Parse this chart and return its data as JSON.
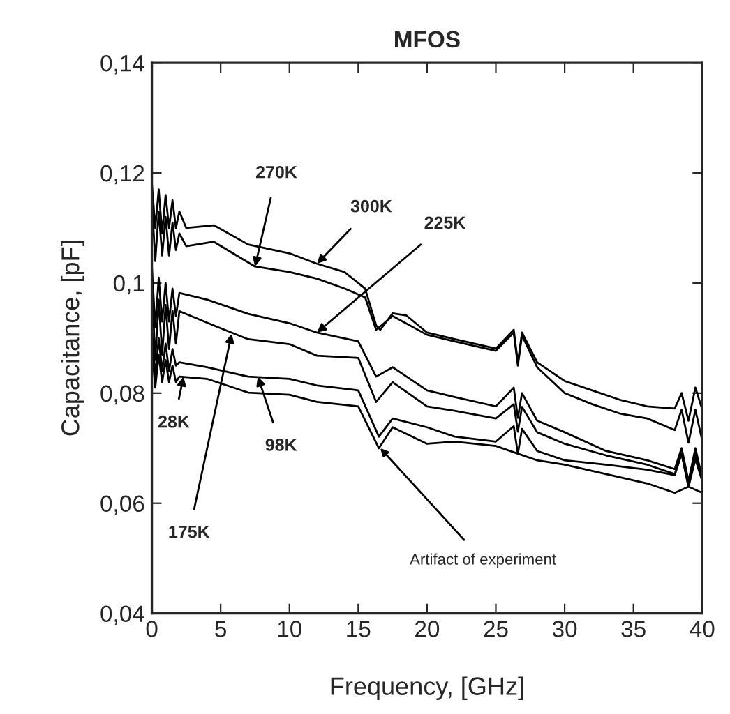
{
  "chart_data": {
    "type": "line",
    "title": "MFOS",
    "xlabel": "Frequency, [GHz]",
    "ylabel": "Capacitance, [pF]",
    "xlim": [
      0,
      40
    ],
    "xticks": [
      0,
      5,
      10,
      15,
      20,
      25,
      30,
      35,
      40
    ],
    "ylim": [
      0.04,
      0.14
    ],
    "yticks": [
      {
        "value": 0.04,
        "label": "0,04"
      },
      {
        "value": 0.06,
        "label": "0,06"
      },
      {
        "value": 0.08,
        "label": "0,08"
      },
      {
        "value": 0.1,
        "label": "0,1"
      },
      {
        "value": 0.12,
        "label": "0,12"
      },
      {
        "value": 0.14,
        "label": "0,14"
      }
    ],
    "grid": false,
    "legend": false,
    "line_style": "solid",
    "series": [
      {
        "color": "#000000",
        "x": [
          0,
          0.25,
          0.5,
          0.75,
          1,
          1.25,
          1.5,
          1.75,
          2,
          2.5,
          4.5,
          7,
          10,
          12,
          14,
          15.5,
          16.3,
          16.6,
          17.5,
          18.5,
          20,
          22,
          25,
          26.3,
          26.6,
          26.9,
          28,
          30,
          32,
          34,
          36,
          38,
          38.5,
          39,
          39.5,
          40
        ],
        "values": [
          0.118,
          0.11,
          0.117,
          0.109,
          0.116,
          0.11,
          0.115,
          0.11,
          0.113,
          0.11,
          0.1105,
          0.107,
          0.1054,
          0.1035,
          0.102,
          0.099,
          0.0923,
          0.0915,
          0.0945,
          0.0941,
          0.091,
          0.0898,
          0.0881,
          0.0915,
          0.0855,
          0.091,
          0.0856,
          0.0822,
          0.0805,
          0.0788,
          0.0776,
          0.0772,
          0.08,
          0.075,
          0.081,
          0.077
        ]
      },
      {
        "color": "#000000",
        "x": [
          0,
          0.25,
          0.5,
          0.75,
          1,
          1.25,
          1.5,
          1.75,
          2,
          2.5,
          4.5,
          7.5,
          10,
          12,
          14,
          15.5,
          16.3,
          17.5,
          20,
          22,
          25,
          26.3,
          26.6,
          26.9,
          28,
          30,
          32,
          34,
          36,
          38,
          38.5,
          39,
          39.5,
          40
        ],
        "values": [
          0.115,
          0.104,
          0.113,
          0.105,
          0.112,
          0.105,
          0.111,
          0.106,
          0.109,
          0.1067,
          0.1075,
          0.103,
          0.102,
          0.1008,
          0.099,
          0.0974,
          0.0915,
          0.094,
          0.0906,
          0.0894,
          0.0877,
          0.091,
          0.085,
          0.0905,
          0.0847,
          0.08,
          0.078,
          0.0763,
          0.0754,
          0.0733,
          0.077,
          0.071,
          0.077,
          0.0713
        ]
      },
      {
        "color": "#000000",
        "x": [
          0,
          0.25,
          0.5,
          0.75,
          1,
          1.25,
          1.5,
          1.75,
          2,
          4,
          7,
          10,
          12,
          15,
          16.3,
          17.5,
          20,
          22,
          25,
          26.3,
          26.6,
          26.9,
          28,
          30,
          33,
          36,
          38,
          38.5,
          39,
          39.5,
          40
        ],
        "values": [
          0.103,
          0.092,
          0.101,
          0.093,
          0.1,
          0.093,
          0.099,
          0.094,
          0.0982,
          0.097,
          0.0944,
          0.0927,
          0.091,
          0.0894,
          0.083,
          0.0847,
          0.0805,
          0.0793,
          0.0776,
          0.081,
          0.0755,
          0.08,
          0.075,
          0.0729,
          0.0695,
          0.0678,
          0.0662,
          0.07,
          0.064,
          0.07,
          0.0645
        ]
      },
      {
        "color": "#000000",
        "x": [
          0,
          0.25,
          0.5,
          0.75,
          1,
          1.25,
          1.5,
          1.75,
          2,
          4.5,
          7,
          10,
          12,
          15,
          16.3,
          17.5,
          20,
          22,
          25,
          26.3,
          26.6,
          26.9,
          28,
          30,
          33,
          36,
          38,
          38.5,
          39,
          39.5,
          40
        ],
        "values": [
          0.1,
          0.086,
          0.097,
          0.087,
          0.096,
          0.088,
          0.095,
          0.089,
          0.0949,
          0.0923,
          0.0898,
          0.0889,
          0.0868,
          0.0864,
          0.0784,
          0.082,
          0.0776,
          0.0768,
          0.0754,
          0.078,
          0.073,
          0.0775,
          0.0729,
          0.0708,
          0.0687,
          0.067,
          0.0653,
          0.069,
          0.063,
          0.069,
          0.064
        ]
      },
      {
        "color": "#000000",
        "x": [
          0,
          0.25,
          0.5,
          0.75,
          1,
          1.25,
          1.5,
          1.75,
          2,
          4,
          7,
          10,
          12,
          15,
          16.5,
          17.5,
          20,
          22,
          25,
          26.3,
          26.6,
          26.9,
          28,
          30,
          33,
          36,
          38,
          38.5,
          39,
          39.5,
          40
        ],
        "values": [
          0.092,
          0.083,
          0.09,
          0.084,
          0.089,
          0.084,
          0.088,
          0.085,
          0.0856,
          0.0847,
          0.083,
          0.0826,
          0.0814,
          0.0805,
          0.0721,
          0.0754,
          0.0738,
          0.0721,
          0.0712,
          0.074,
          0.069,
          0.0735,
          0.0695,
          0.0678,
          0.067,
          0.0661,
          0.0651,
          0.069,
          0.063,
          0.068,
          0.064
        ]
      },
      {
        "color": "#000000",
        "x": [
          0,
          0.25,
          0.5,
          0.75,
          1,
          1.25,
          1.5,
          1.75,
          2,
          4,
          7,
          10,
          12,
          15,
          16.5,
          17.5,
          20,
          22,
          25,
          28,
          30,
          33,
          36,
          38,
          39,
          40
        ],
        "values": [
          0.088,
          0.081,
          0.087,
          0.082,
          0.086,
          0.082,
          0.085,
          0.082,
          0.083,
          0.0826,
          0.0801,
          0.0797,
          0.0784,
          0.0776,
          0.07,
          0.0738,
          0.0708,
          0.0712,
          0.0704,
          0.0678,
          0.067,
          0.0653,
          0.0636,
          0.0619,
          0.063,
          0.0619
        ]
      }
    ],
    "annotations": [
      {
        "text": "270K",
        "x": 7.5,
        "y": 0.103
      },
      {
        "text": "300K",
        "x": 12,
        "y": 0.1035
      },
      {
        "text": "225K",
        "x": 12,
        "y": 0.091
      },
      {
        "text": "28K",
        "x": 2.3,
        "y": 0.083
      },
      {
        "text": "175K",
        "x": 5.8,
        "y": 0.0908
      },
      {
        "text": "98K",
        "x": 7.7,
        "y": 0.083
      },
      {
        "text": "Artifact of experiment",
        "x": 16.6,
        "y": 0.07
      }
    ]
  }
}
